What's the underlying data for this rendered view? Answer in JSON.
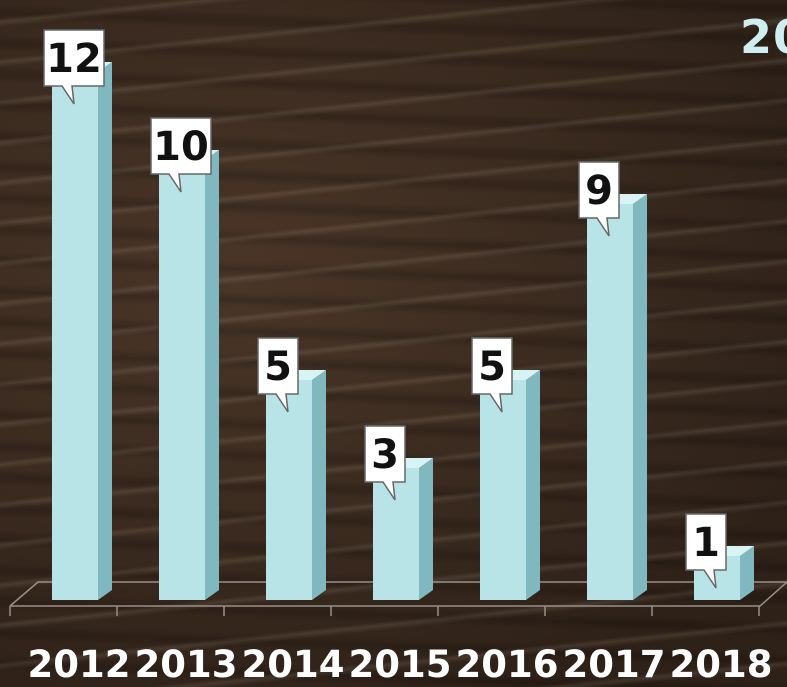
{
  "chart_title_fragment": "20",
  "colors": {
    "bar": "#b8e4e7",
    "bar_side": "#7fb9bf",
    "label_background": "#ffffff",
    "tick_text": "#ffffff"
  },
  "chart_data": {
    "type": "bar",
    "title": "20",
    "categories": [
      "2012",
      "2013",
      "2014",
      "2015",
      "2016",
      "2017",
      "2018"
    ],
    "values": [
      12,
      10,
      5,
      3,
      5,
      9,
      1
    ],
    "data_labels": [
      "12",
      "10",
      "5",
      "3",
      "5",
      "9",
      "1"
    ],
    "xlabel": "",
    "ylabel": "",
    "ylim": [
      0,
      12
    ],
    "grid": false,
    "legend": "none",
    "style": "3d-column with callout data labels"
  }
}
